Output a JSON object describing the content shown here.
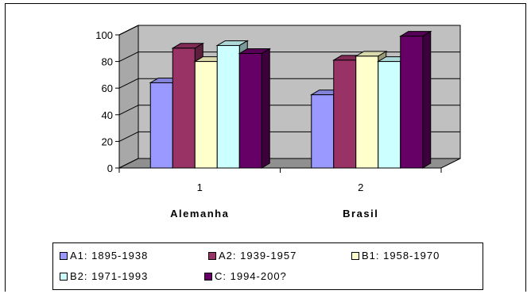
{
  "chart_data": {
    "type": "bar",
    "title": "",
    "xlabel": "",
    "ylabel": "",
    "ylim": [
      0,
      100
    ],
    "yticks": [
      "0",
      "20",
      "40",
      "60",
      "80",
      "100"
    ],
    "categories": [
      "1",
      "2"
    ],
    "category_names": [
      "Alemanha",
      "Brasil"
    ],
    "series": [
      {
        "name": "A1: 1895-1938",
        "color": "#9999ff",
        "values": [
          64,
          55
        ]
      },
      {
        "name": "A2: 1939-1957",
        "color": "#993366",
        "values": [
          90,
          81
        ]
      },
      {
        "name": "B1: 1958-1970",
        "color": "#ffffcc",
        "values": [
          80,
          84
        ]
      },
      {
        "name": "B2: 1971-1993",
        "color": "#ccffff",
        "values": [
          92,
          80
        ]
      },
      {
        "name": "C: 1994-200?",
        "color": "#660066",
        "values": [
          86,
          99
        ]
      }
    ],
    "grid": true,
    "legend_position": "bottom",
    "wall_color": "#c0c0c0"
  }
}
